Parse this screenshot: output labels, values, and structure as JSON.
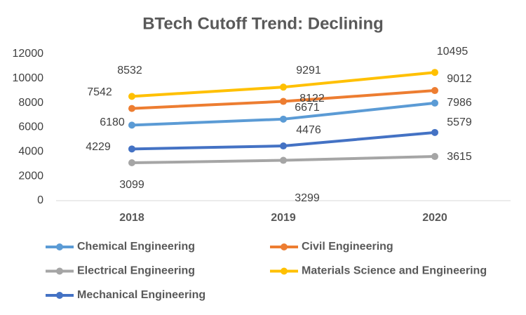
{
  "chart_data": {
    "type": "line",
    "title": "BTech Cutoff Trend: Declining",
    "categories": [
      "2018",
      "2019",
      "2020"
    ],
    "series": [
      {
        "name": "Chemical Engineering",
        "color": "#5b9bd5",
        "values": [
          6180,
          6671,
          7986
        ]
      },
      {
        "name": "Civil Engineering",
        "color": "#ed7d31",
        "values": [
          7542,
          8122,
          9012
        ]
      },
      {
        "name": "Electrical Engineering",
        "color": "#a5a5a5",
        "values": [
          3099,
          3299,
          3615
        ]
      },
      {
        "name": "Materials Science and Engineering",
        "color": "#ffc000",
        "values": [
          8532,
          9291,
          10495
        ]
      },
      {
        "name": "Mechanical Engineering",
        "color": "#4472c4",
        "values": [
          4229,
          4476,
          5579
        ]
      }
    ],
    "ylim": [
      0,
      12000
    ],
    "yticks": [
      0,
      2000,
      4000,
      6000,
      8000,
      10000,
      12000
    ],
    "grid": false,
    "legend": "bottom"
  }
}
